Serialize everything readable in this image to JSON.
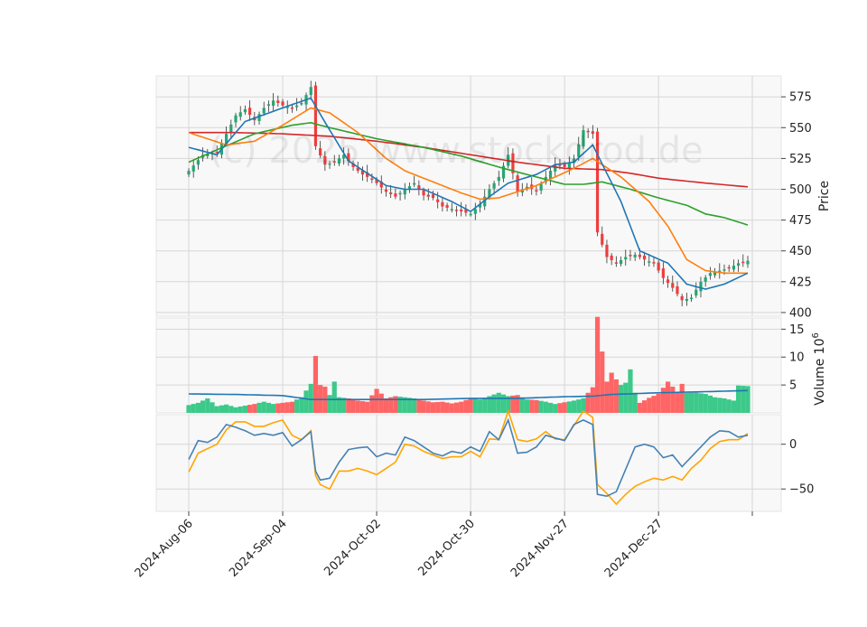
{
  "chart_data": {
    "type": "candlestick",
    "x_tick_labels": [
      "2024-Aug-06",
      "2024-Sep-04",
      "2024-Oct-02",
      "2024-Oct-30",
      "2024-Nov-27",
      "2024-Dec-27"
    ],
    "x_tick_indices": [
      0,
      20,
      40,
      60,
      80,
      100
    ],
    "n_bars": 120,
    "watermark": "(c) 2025 www.stockdrod.de",
    "colors": {
      "up": "#26a671",
      "down": "#ef3d3d",
      "up_vol": "#3cc98a",
      "down_vol": "#ff6565",
      "sma_short": "#1f77b4",
      "sma_mid": "#ff7f0e",
      "sma_long": "#2ca02c",
      "sma_longest": "#d62728",
      "osc_a": "#4682b4",
      "osc_b": "#ffa500"
    },
    "price_panel": {
      "ylabel": "Price",
      "yticks": [
        400,
        425,
        450,
        475,
        500,
        525,
        550,
        575
      ],
      "ylim": [
        397,
        592
      ],
      "key_close": [
        [
          0,
          515
        ],
        [
          3,
          528
        ],
        [
          6,
          530
        ],
        [
          8,
          545
        ],
        [
          10,
          560
        ],
        [
          12,
          565
        ],
        [
          14,
          556
        ],
        [
          16,
          566
        ],
        [
          18,
          572
        ],
        [
          20,
          568
        ],
        [
          22,
          566
        ],
        [
          24,
          570
        ],
        [
          26,
          583
        ],
        [
          27,
          535
        ],
        [
          29,
          520
        ],
        [
          31,
          522
        ],
        [
          33,
          528
        ],
        [
          35,
          518
        ],
        [
          37,
          512
        ],
        [
          39,
          508
        ],
        [
          40,
          505
        ],
        [
          42,
          498
        ],
        [
          44,
          494
        ],
        [
          46,
          500
        ],
        [
          48,
          505
        ],
        [
          50,
          495
        ],
        [
          52,
          493
        ],
        [
          54,
          486
        ],
        [
          56,
          484
        ],
        [
          58,
          482
        ],
        [
          60,
          480
        ],
        [
          62,
          488
        ],
        [
          64,
          500
        ],
        [
          66,
          510
        ],
        [
          68,
          528
        ],
        [
          70,
          498
        ],
        [
          72,
          502
        ],
        [
          74,
          499
        ],
        [
          76,
          510
        ],
        [
          78,
          520
        ],
        [
          80,
          518
        ],
        [
          82,
          525
        ],
        [
          84,
          548
        ],
        [
          86,
          545
        ],
        [
          87,
          465
        ],
        [
          89,
          445
        ],
        [
          91,
          440
        ],
        [
          93,
          445
        ],
        [
          95,
          447
        ],
        [
          97,
          443
        ],
        [
          99,
          440
        ],
        [
          101,
          428
        ],
        [
          103,
          420
        ],
        [
          105,
          410
        ],
        [
          107,
          412
        ],
        [
          109,
          425
        ],
        [
          111,
          432
        ],
        [
          113,
          434
        ],
        [
          115,
          436
        ],
        [
          117,
          440
        ],
        [
          119,
          442
        ]
      ],
      "sma_short_pts": [
        [
          0,
          534
        ],
        [
          6,
          528
        ],
        [
          12,
          555
        ],
        [
          20,
          566
        ],
        [
          26,
          574
        ],
        [
          30,
          548
        ],
        [
          34,
          523
        ],
        [
          38,
          513
        ],
        [
          42,
          503
        ],
        [
          46,
          500
        ],
        [
          50,
          500
        ],
        [
          56,
          490
        ],
        [
          60,
          482
        ],
        [
          64,
          494
        ],
        [
          68,
          505
        ],
        [
          74,
          512
        ],
        [
          78,
          520
        ],
        [
          82,
          522
        ],
        [
          86,
          536
        ],
        [
          92,
          490
        ],
        [
          96,
          450
        ],
        [
          102,
          440
        ],
        [
          106,
          423
        ],
        [
          110,
          419
        ],
        [
          114,
          423
        ],
        [
          119,
          432
        ]
      ],
      "sma_mid_pts": [
        [
          0,
          546
        ],
        [
          8,
          536
        ],
        [
          14,
          539
        ],
        [
          20,
          552
        ],
        [
          26,
          566
        ],
        [
          30,
          562
        ],
        [
          36,
          546
        ],
        [
          42,
          525
        ],
        [
          46,
          515
        ],
        [
          52,
          506
        ],
        [
          58,
          497
        ],
        [
          62,
          492
        ],
        [
          66,
          493
        ],
        [
          70,
          498
        ],
        [
          74,
          503
        ],
        [
          78,
          510
        ],
        [
          82,
          517
        ],
        [
          86,
          525
        ],
        [
          92,
          510
        ],
        [
          98,
          490
        ],
        [
          102,
          470
        ],
        [
          106,
          443
        ],
        [
          110,
          434
        ],
        [
          114,
          432
        ],
        [
          119,
          432
        ]
      ],
      "sma_long_pts": [
        [
          0,
          522
        ],
        [
          6,
          532
        ],
        [
          14,
          545
        ],
        [
          22,
          552
        ],
        [
          26,
          554
        ],
        [
          30,
          550
        ],
        [
          40,
          541
        ],
        [
          50,
          534
        ],
        [
          58,
          527
        ],
        [
          66,
          518
        ],
        [
          74,
          510
        ],
        [
          80,
          504
        ],
        [
          84,
          504
        ],
        [
          88,
          506
        ],
        [
          94,
          500
        ],
        [
          100,
          493
        ],
        [
          106,
          487
        ],
        [
          110,
          480
        ],
        [
          114,
          477
        ],
        [
          119,
          471
        ]
      ],
      "sma_longest_pts": [
        [
          0,
          546
        ],
        [
          10,
          546
        ],
        [
          20,
          545
        ],
        [
          30,
          543
        ],
        [
          40,
          539
        ],
        [
          50,
          534
        ],
        [
          60,
          528
        ],
        [
          70,
          522
        ],
        [
          80,
          517
        ],
        [
          88,
          516
        ],
        [
          94,
          513
        ],
        [
          100,
          509
        ],
        [
          110,
          505
        ],
        [
          119,
          502
        ]
      ]
    },
    "volume_panel": {
      "ylabel": "Volume  10^6",
      "yticks": [
        5,
        10,
        15
      ],
      "ylim": [
        0,
        17
      ],
      "key_volume": [
        [
          0,
          1.4
        ],
        [
          2,
          1.8
        ],
        [
          4,
          2.6
        ],
        [
          6,
          1.2
        ],
        [
          8,
          1.5
        ],
        [
          10,
          1.0
        ],
        [
          12,
          1.3
        ],
        [
          14,
          1.6
        ],
        [
          16,
          2.0
        ],
        [
          18,
          1.6
        ],
        [
          20,
          1.8
        ],
        [
          22,
          2.0
        ],
        [
          24,
          2.8
        ],
        [
          26,
          5.2
        ],
        [
          27,
          10.2
        ],
        [
          28,
          5.0
        ],
        [
          29,
          4.7
        ],
        [
          30,
          3.2
        ],
        [
          31,
          5.6
        ],
        [
          32,
          2.8
        ],
        [
          34,
          2.6
        ],
        [
          36,
          2.2
        ],
        [
          38,
          2.0
        ],
        [
          40,
          4.3
        ],
        [
          42,
          2.6
        ],
        [
          44,
          3.0
        ],
        [
          46,
          2.8
        ],
        [
          48,
          2.6
        ],
        [
          50,
          2.2
        ],
        [
          52,
          1.9
        ],
        [
          54,
          2.0
        ],
        [
          56,
          1.7
        ],
        [
          58,
          2.0
        ],
        [
          60,
          2.6
        ],
        [
          62,
          2.4
        ],
        [
          64,
          3.0
        ],
        [
          66,
          3.6
        ],
        [
          68,
          3.0
        ],
        [
          70,
          3.2
        ],
        [
          72,
          2.4
        ],
        [
          74,
          2.3
        ],
        [
          76,
          2.0
        ],
        [
          78,
          1.6
        ],
        [
          80,
          1.9
        ],
        [
          82,
          2.2
        ],
        [
          84,
          2.6
        ],
        [
          86,
          4.6
        ],
        [
          87,
          17.2
        ],
        [
          88,
          11.0
        ],
        [
          89,
          5.6
        ],
        [
          90,
          7.2
        ],
        [
          91,
          6.0
        ],
        [
          92,
          5.0
        ],
        [
          93,
          5.4
        ],
        [
          94,
          7.8
        ],
        [
          95,
          3.6
        ],
        [
          96,
          1.8
        ],
        [
          98,
          2.7
        ],
        [
          100,
          3.4
        ],
        [
          102,
          5.6
        ],
        [
          104,
          3.8
        ],
        [
          105,
          5.2
        ],
        [
          106,
          3.6
        ],
        [
          108,
          3.6
        ],
        [
          110,
          3.4
        ],
        [
          112,
          2.8
        ],
        [
          114,
          2.6
        ],
        [
          116,
          2.2
        ],
        [
          117,
          4.9
        ],
        [
          119,
          4.8
        ]
      ],
      "vol_ma_pts": [
        [
          0,
          3.4
        ],
        [
          10,
          3.3
        ],
        [
          20,
          3.1
        ],
        [
          26,
          2.4
        ],
        [
          36,
          2.4
        ],
        [
          50,
          2.4
        ],
        [
          60,
          2.6
        ],
        [
          70,
          2.6
        ],
        [
          80,
          2.9
        ],
        [
          86,
          3.0
        ],
        [
          90,
          3.3
        ],
        [
          100,
          3.6
        ],
        [
          110,
          3.8
        ],
        [
          119,
          4.0
        ]
      ]
    },
    "oscillator_panel": {
      "yticks": [
        -50,
        0
      ],
      "ylim": [
        -75,
        33
      ],
      "line_a_pts": [
        [
          0,
          -17
        ],
        [
          2,
          4
        ],
        [
          4,
          2
        ],
        [
          6,
          8
        ],
        [
          8,
          22
        ],
        [
          10,
          19
        ],
        [
          12,
          15
        ],
        [
          14,
          10
        ],
        [
          16,
          12
        ],
        [
          18,
          10
        ],
        [
          20,
          13
        ],
        [
          22,
          -2
        ],
        [
          24,
          5
        ],
        [
          26,
          14
        ],
        [
          27,
          -30
        ],
        [
          28,
          -40
        ],
        [
          30,
          -38
        ],
        [
          32,
          -20
        ],
        [
          34,
          -6
        ],
        [
          36,
          -4
        ],
        [
          38,
          -3
        ],
        [
          40,
          -14
        ],
        [
          42,
          -10
        ],
        [
          44,
          -12
        ],
        [
          46,
          8
        ],
        [
          48,
          4
        ],
        [
          50,
          -3
        ],
        [
          52,
          -10
        ],
        [
          54,
          -13
        ],
        [
          56,
          -8
        ],
        [
          58,
          -10
        ],
        [
          60,
          -3
        ],
        [
          62,
          -8
        ],
        [
          64,
          14
        ],
        [
          66,
          5
        ],
        [
          68,
          27
        ],
        [
          70,
          -10
        ],
        [
          72,
          -9
        ],
        [
          74,
          -3
        ],
        [
          76,
          10
        ],
        [
          78,
          7
        ],
        [
          80,
          4
        ],
        [
          82,
          22
        ],
        [
          84,
          27
        ],
        [
          86,
          22
        ],
        [
          87,
          -56
        ],
        [
          89,
          -58
        ],
        [
          91,
          -53
        ],
        [
          93,
          -28
        ],
        [
          95,
          -3
        ],
        [
          97,
          0
        ],
        [
          99,
          -3
        ],
        [
          101,
          -15
        ],
        [
          103,
          -12
        ],
        [
          105,
          -25
        ],
        [
          107,
          -14
        ],
        [
          109,
          -3
        ],
        [
          111,
          8
        ],
        [
          113,
          15
        ],
        [
          115,
          14
        ],
        [
          117,
          8
        ],
        [
          119,
          10
        ]
      ],
      "line_b_pts": [
        [
          0,
          -31
        ],
        [
          2,
          -10
        ],
        [
          4,
          -5
        ],
        [
          6,
          0
        ],
        [
          8,
          16
        ],
        [
          10,
          25
        ],
        [
          12,
          25
        ],
        [
          14,
          20
        ],
        [
          16,
          20
        ],
        [
          18,
          24
        ],
        [
          20,
          27
        ],
        [
          22,
          10
        ],
        [
          24,
          5
        ],
        [
          26,
          15
        ],
        [
          27,
          -35
        ],
        [
          28,
          -45
        ],
        [
          30,
          -50
        ],
        [
          32,
          -30
        ],
        [
          34,
          -30
        ],
        [
          36,
          -27
        ],
        [
          38,
          -30
        ],
        [
          40,
          -34
        ],
        [
          42,
          -27
        ],
        [
          44,
          -20
        ],
        [
          46,
          0
        ],
        [
          48,
          -2
        ],
        [
          50,
          -8
        ],
        [
          52,
          -12
        ],
        [
          54,
          -16
        ],
        [
          56,
          -14
        ],
        [
          58,
          -14
        ],
        [
          60,
          -8
        ],
        [
          62,
          -14
        ],
        [
          64,
          6
        ],
        [
          66,
          5
        ],
        [
          68,
          37
        ],
        [
          70,
          5
        ],
        [
          72,
          3
        ],
        [
          74,
          6
        ],
        [
          76,
          14
        ],
        [
          78,
          6
        ],
        [
          80,
          5
        ],
        [
          82,
          21
        ],
        [
          84,
          37
        ],
        [
          86,
          30
        ],
        [
          87,
          -45
        ],
        [
          89,
          -55
        ],
        [
          91,
          -67
        ],
        [
          93,
          -56
        ],
        [
          95,
          -47
        ],
        [
          97,
          -42
        ],
        [
          99,
          -38
        ],
        [
          101,
          -40
        ],
        [
          103,
          -36
        ],
        [
          105,
          -40
        ],
        [
          107,
          -27
        ],
        [
          109,
          -18
        ],
        [
          111,
          -5
        ],
        [
          113,
          3
        ],
        [
          115,
          5
        ],
        [
          117,
          5
        ],
        [
          119,
          12
        ]
      ]
    }
  }
}
